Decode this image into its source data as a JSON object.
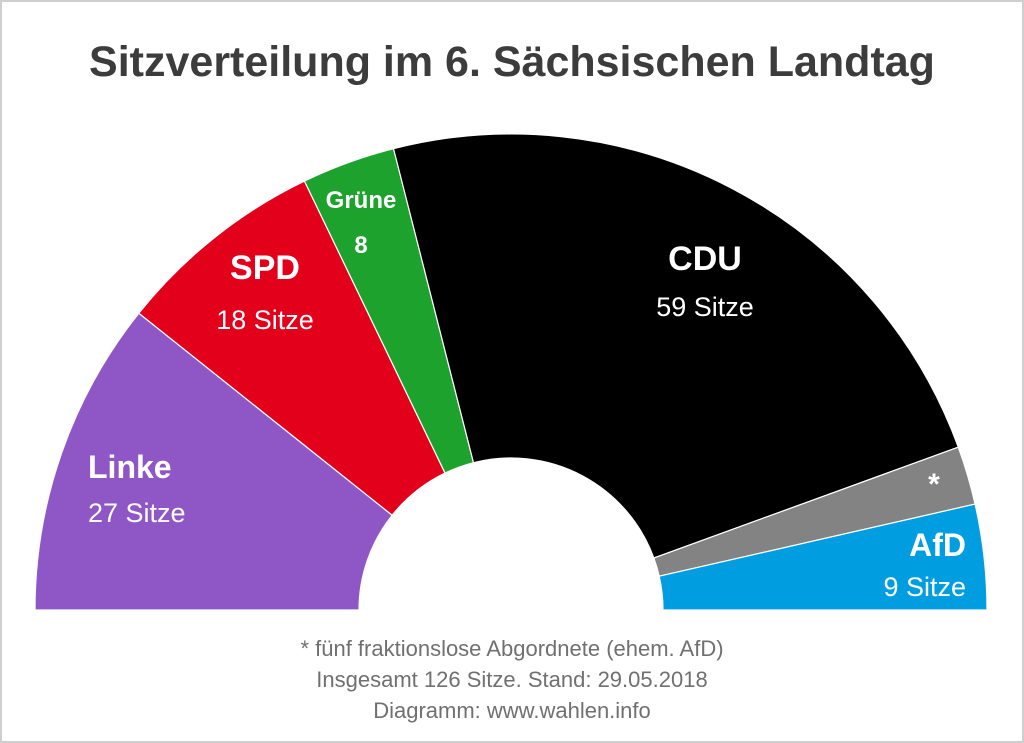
{
  "chart_data": {
    "type": "pie",
    "subtype": "semicircle-parliament",
    "title": "Sitzverteilung im 6. Sächsischen Landtag",
    "total": 126,
    "slices": [
      {
        "name": "Linke",
        "value": 27,
        "label": "27 Sitze",
        "color": "#8f57c6"
      },
      {
        "name": "SPD",
        "value": 18,
        "label": "18 Sitze",
        "color": "#e2001a"
      },
      {
        "name": "Grüne",
        "value": 8,
        "label": "8",
        "color": "#1ea22e"
      },
      {
        "name": "CDU",
        "value": 59,
        "label": "59 Sitze",
        "color": "#000000"
      },
      {
        "name": "*",
        "value": 5,
        "label": "",
        "color": "#838383"
      },
      {
        "name": "AfD",
        "value": 9,
        "label": "9 Sitze",
        "color": "#009ee0"
      }
    ],
    "footnotes": [
      "* fünf fraktionslose Abgordnete (ehem. AfD)",
      "Insgesamt 126 Sitze. Stand: 29.05.2018",
      "Diagramm: www.wahlen.info"
    ]
  }
}
